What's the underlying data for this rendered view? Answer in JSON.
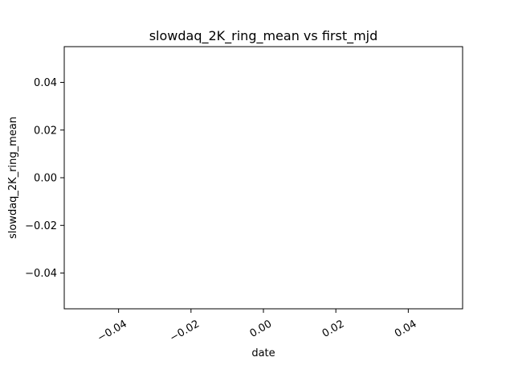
{
  "chart_data": {
    "type": "line",
    "title": "slowdaq_2K_ring_mean vs first_mjd",
    "xlabel": "date",
    "ylabel": "slowdaq_2K_ring_mean",
    "xlim": [
      -0.055,
      0.055
    ],
    "ylim": [
      -0.055,
      0.055
    ],
    "xticks": [
      -0.04,
      -0.02,
      0.0,
      0.02,
      0.04
    ],
    "xtick_labels": [
      "−0.04",
      "−0.02",
      "0.00",
      "0.02",
      "0.04"
    ],
    "yticks": [
      0.04,
      0.02,
      0.0,
      -0.02,
      -0.04
    ],
    "ytick_labels": [
      "0.04",
      "0.02",
      "0.00",
      "−0.02",
      "−0.04"
    ],
    "series": [],
    "grid": false,
    "legend": false
  }
}
